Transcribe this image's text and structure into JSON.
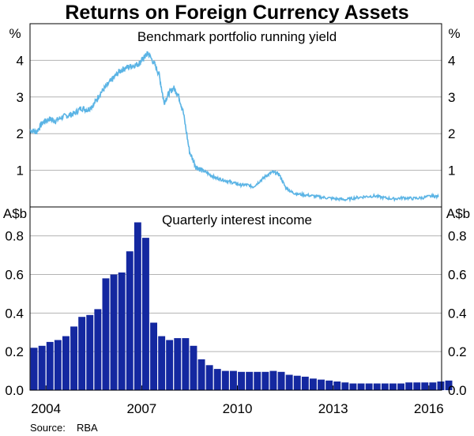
{
  "title": "Returns on Foreign Currency Assets",
  "source_label": "Source:",
  "source_value": "RBA",
  "colors": {
    "line": "#5bb4e5",
    "bar": "#1428a0",
    "grid": "#b3b3b3",
    "frame": "#000000"
  },
  "chart_data": [
    {
      "type": "line",
      "title": "Benchmark portfolio running yield",
      "unit_left": "%",
      "unit_right": "%",
      "ylim": [
        0,
        5
      ],
      "yticks": [
        1,
        2,
        3,
        4
      ],
      "xlim": [
        2003.5,
        2016.4
      ],
      "grid": true,
      "series": [
        {
          "x": [
            2003.5,
            2003.7,
            2003.9,
            2004.1,
            2004.3,
            2004.5,
            2004.7,
            2004.9,
            2005.1,
            2005.3,
            2005.5,
            2005.7,
            2005.9,
            2006.1,
            2006.3,
            2006.5,
            2006.7,
            2006.9,
            2007.0,
            2007.1,
            2007.2,
            2007.4,
            2007.55,
            2007.7,
            2007.85,
            2008.0,
            2008.15,
            2008.3,
            2008.5,
            2008.7,
            2008.9,
            2009.1,
            2009.3,
            2009.5,
            2009.7,
            2009.9,
            2010.1,
            2010.3,
            2010.5,
            2010.7,
            2010.9,
            2011.1,
            2011.3,
            2011.5,
            2011.7,
            2011.9,
            2012.2,
            2012.5,
            2012.8,
            2013.1,
            2013.4,
            2013.7,
            2014.0,
            2014.3,
            2014.6,
            2014.9,
            2015.2,
            2015.5,
            2015.8,
            2016.1,
            2016.3
          ],
          "y": [
            2.1,
            2.05,
            2.3,
            2.4,
            2.35,
            2.45,
            2.5,
            2.55,
            2.7,
            2.65,
            2.8,
            3.1,
            3.3,
            3.5,
            3.7,
            3.8,
            3.85,
            3.9,
            4.0,
            4.1,
            4.2,
            3.9,
            3.6,
            2.85,
            3.1,
            3.25,
            3.05,
            2.6,
            1.5,
            1.1,
            1.0,
            0.9,
            0.8,
            0.75,
            0.7,
            0.65,
            0.6,
            0.6,
            0.55,
            0.7,
            0.85,
            0.95,
            0.9,
            0.55,
            0.4,
            0.35,
            0.32,
            0.28,
            0.25,
            0.22,
            0.2,
            0.25,
            0.28,
            0.3,
            0.25,
            0.22,
            0.25,
            0.23,
            0.25,
            0.3,
            0.28
          ]
        }
      ]
    },
    {
      "type": "bar",
      "title": "Quarterly interest income",
      "unit_left": "A$b",
      "unit_right": "A$b",
      "ylim": [
        0,
        0.95
      ],
      "yticks": [
        0.0,
        0.2,
        0.4,
        0.6,
        0.8
      ],
      "ytick_labels": [
        "0.0",
        "0.2",
        "0.4",
        "0.6",
        "0.8"
      ],
      "xlim": [
        2003.5,
        2016.4
      ],
      "xticks": [
        2004,
        2007,
        2010,
        2013,
        2016
      ],
      "grid": true,
      "start_x": 2003.5,
      "bar_step": 0.25,
      "values": [
        0.22,
        0.23,
        0.25,
        0.26,
        0.28,
        0.33,
        0.38,
        0.39,
        0.42,
        0.58,
        0.6,
        0.61,
        0.72,
        0.87,
        0.79,
        0.35,
        0.28,
        0.26,
        0.27,
        0.27,
        0.23,
        0.16,
        0.13,
        0.11,
        0.1,
        0.1,
        0.095,
        0.095,
        0.095,
        0.095,
        0.1,
        0.095,
        0.08,
        0.075,
        0.07,
        0.06,
        0.055,
        0.05,
        0.045,
        0.04,
        0.035,
        0.035,
        0.035,
        0.035,
        0.035,
        0.035,
        0.035,
        0.04,
        0.04,
        0.04,
        0.04,
        0.045,
        0.05
      ]
    }
  ]
}
